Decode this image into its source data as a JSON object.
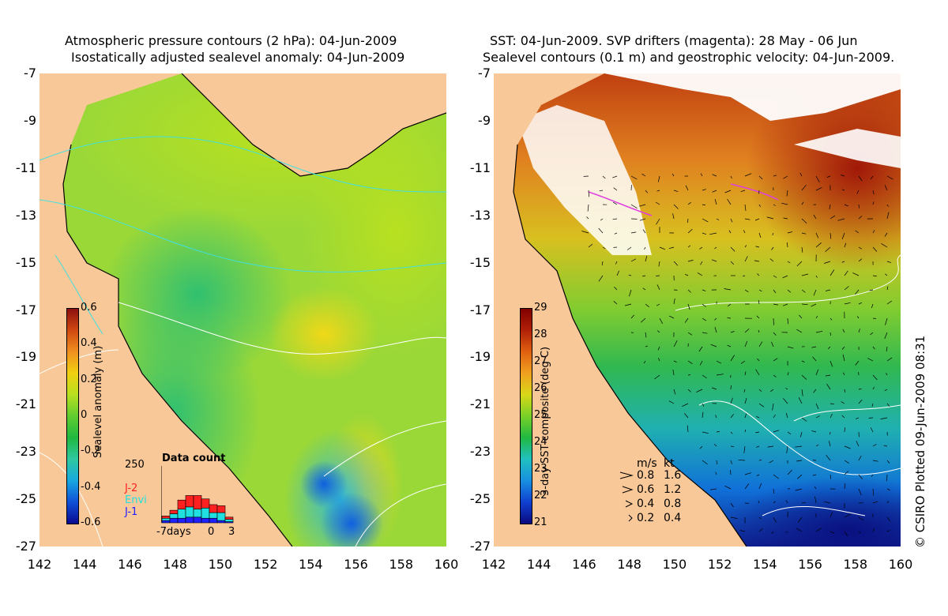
{
  "left_panel": {
    "title_line1": "Atmospheric pressure contours (2 hPa): 04-Jun-2009",
    "title_line2": "Isostatically adjusted sealevel anomaly: 04-Jun-2009",
    "colorbar": {
      "label": "Sealevel anomaly (m)",
      "ticks": [
        "0.6",
        "0.4",
        "0.2",
        "0",
        "-0.2",
        "-0.4",
        "-0.6"
      ],
      "range": [
        -0.6,
        0.6
      ],
      "palette": [
        "#0a0a90",
        "#1050d8",
        "#18a8e0",
        "#30c8a0",
        "#20b840",
        "#60cc30",
        "#b8e020",
        "#f0d010",
        "#f09020",
        "#d04810",
        "#8c1010"
      ]
    },
    "data_count": {
      "title": "Data count",
      "y_max_label": "250",
      "x_labels": [
        "-7days",
        "0",
        "3"
      ],
      "legend": [
        {
          "name": "J-2",
          "color": "#ff2020"
        },
        {
          "name": "Envi",
          "color": "#20e0e0"
        },
        {
          "name": "J-1",
          "color": "#2020ff"
        }
      ],
      "bars": [
        {
          "j1": 10,
          "envi": 10,
          "j2": 10
        },
        {
          "j1": 20,
          "envi": 20,
          "j2": 15
        },
        {
          "j1": 20,
          "envi": 40,
          "j2": 40
        },
        {
          "j1": 25,
          "envi": 45,
          "j2": 50
        },
        {
          "j1": 25,
          "envi": 35,
          "j2": 60
        },
        {
          "j1": 20,
          "envi": 45,
          "j2": 40
        },
        {
          "j1": 20,
          "envi": 25,
          "j2": 35
        },
        {
          "j1": 10,
          "envi": 35,
          "j2": 30
        },
        {
          "j1": 5,
          "envi": 10,
          "j2": 10
        }
      ]
    }
  },
  "right_panel": {
    "title_line1": "SST: 04-Jun-2009. SVP drifters (magenta): 28 May - 06 Jun",
    "title_line2": "Sealevel contours (0.1 m) and geostrophic velocity: 04-Jun-2009.",
    "colorbar": {
      "label": "3-day SST composite (deg C)",
      "ticks": [
        "29",
        "28",
        "27",
        "26",
        "25",
        "24",
        "23",
        "22",
        "21"
      ],
      "range": [
        21,
        29
      ],
      "palette": [
        "#0a0a80",
        "#1040d0",
        "#1890e0",
        "#20c0c0",
        "#20b840",
        "#78d028",
        "#d8d818",
        "#f0a020",
        "#e06010",
        "#b02008",
        "#800000"
      ]
    },
    "velocity_legend": {
      "header_ms": "m/s",
      "header_kt": "kt",
      "rows": [
        {
          "ms": "0.8",
          "kt": "1.6"
        },
        {
          "ms": "0.6",
          "kt": "1.2"
        },
        {
          "ms": "0.4",
          "kt": "0.8"
        },
        {
          "ms": "0.2",
          "kt": "0.4"
        }
      ]
    }
  },
  "axes": {
    "x_ticks": [
      "142",
      "144",
      "146",
      "148",
      "150",
      "152",
      "154",
      "156",
      "158",
      "160"
    ],
    "y_ticks": [
      "-7",
      "-9",
      "-11",
      "-13",
      "-15",
      "-17",
      "-19",
      "-21",
      "-23",
      "-25",
      "-27"
    ],
    "lon_range": [
      142,
      160
    ],
    "lat_range": [
      -27,
      -7
    ]
  },
  "credit": "© CSIRO Plotted 09-Jun-2009 08:31",
  "colors": {
    "land": "#f8c898",
    "coast": "#000000",
    "pressure_contours": "#40e0e0",
    "sealevel_contours": "#ffffff",
    "drifters": "#e040e0"
  }
}
